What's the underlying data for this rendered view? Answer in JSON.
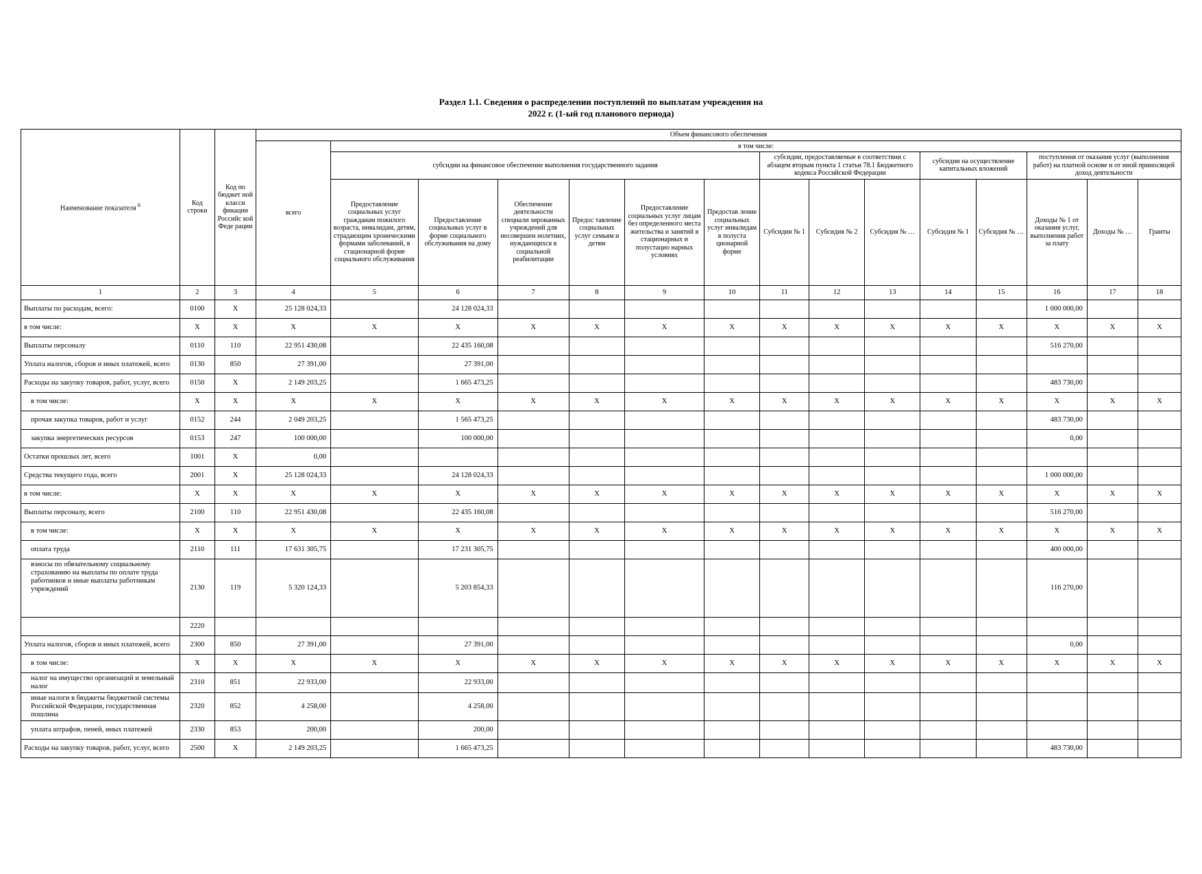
{
  "title": "Раздел 1.1. Сведения о распределении поступлений по выплатам учреждения на",
  "subtitle": "2022 г. (1-ый год планового периода)",
  "head": {
    "c1": "Наименование показателя",
    "c2": "Код строки",
    "c3": "Код по бюджет ной класси фикации Российс кой Феде рации",
    "volume": "Объем финансового обеспечения",
    "vsego": "всего",
    "vtom": "в том числе:",
    "gos_zadanie": "субсидии на финансовое обеспечение выполнения государственного задания",
    "subs_78": "субсидии, предоставляемые в соответствии с абзацем вторым пункта 1 статьи 78.1 Бюджетного кодекса Российской Федерации",
    "kap": "субсидии на осуществление капитальных вложений",
    "postup": "поступления от оказания услуг (выполнения работ) на платной основе и от иной приносящей доход деятельности",
    "h5": "Предоставление социальных услуг гражданам пожилого возраста, инвалидам, детям, страдающим хроническими формами заболеваний, в стационарной форме социального обслуживания",
    "h6": "Предоставление социальных услуг в форме социального обслуживания на дому",
    "h7": "Обеспечение деятельности специали зированных учреждений для несовершен нолетних, нуждающихся в социальной реабилитации",
    "h8": "Предос тавление социальных услуг семьям и детям",
    "h9": "Предоставление социальных услуг лицам без определенного места жительства и занятий в стационарных и полустацио нарных условиях",
    "h10": "Предостав ление социальных услуг инвалидам в полуста ционарной форме",
    "h11": "Субсидия № 1",
    "h12": "Субсидия № 2",
    "h13": "Субсидия № …",
    "h14": "Субсидия № 1",
    "h15": "Субсидия № …",
    "h16": "Доходы № 1 от оказания услуг, выполнения работ за плату",
    "h17": "Доходы № …",
    "h18": "Гранты"
  },
  "numrow": [
    "1",
    "2",
    "3",
    "4",
    "5",
    "6",
    "7",
    "8",
    "9",
    "10",
    "11",
    "12",
    "13",
    "14",
    "15",
    "16",
    "17",
    "18"
  ],
  "rows": [
    {
      "name": "Выплаты по расходам, всего:",
      "c2": "0100",
      "c3": "X",
      "c4": "25 128 024,33",
      "c5": "",
      "c6": "24 128 024,33",
      "c7": "",
      "c8": "",
      "c9": "",
      "c10": "",
      "c11": "",
      "c12": "",
      "c13": "",
      "c14": "",
      "c15": "",
      "c16": "1 000 000,00",
      "c17": "",
      "c18": ""
    },
    {
      "name": "в том числе:",
      "c2": "X",
      "c3": "X",
      "c4": "X",
      "c5": "X",
      "c6": "X",
      "c7": "X",
      "c8": "X",
      "c9": "X",
      "c10": "X",
      "c11": "X",
      "c12": "X",
      "c13": "X",
      "c14": "X",
      "c15": "X",
      "c16": "X",
      "c17": "X",
      "c18": "X",
      "center": true
    },
    {
      "name": "Выплаты персоналу",
      "c2": "0110",
      "c3": "110",
      "c4": "22 951 430,08",
      "c5": "",
      "c6": "22 435 160,08",
      "c7": "",
      "c8": "",
      "c9": "",
      "c10": "",
      "c11": "",
      "c12": "",
      "c13": "",
      "c14": "",
      "c15": "",
      "c16": "516 270,00",
      "c17": "",
      "c18": ""
    },
    {
      "name": "Уплата налогов, сборов и иных платежей, всего",
      "c2": "0130",
      "c3": "850",
      "c4": "27 391,00",
      "c5": "",
      "c6": "27 391,00",
      "c7": "",
      "c8": "",
      "c9": "",
      "c10": "",
      "c11": "",
      "c12": "",
      "c13": "",
      "c14": "",
      "c15": "",
      "c16": "",
      "c17": "",
      "c18": ""
    },
    {
      "name": "Расходы на закупку товаров, работ, услуг, всего",
      "c2": "0150",
      "c3": "X",
      "c4": "2 149 203,25",
      "c5": "",
      "c6": "1 665 473,25",
      "c7": "",
      "c8": "",
      "c9": "",
      "c10": "",
      "c11": "",
      "c12": "",
      "c13": "",
      "c14": "",
      "c15": "",
      "c16": "483 730,00",
      "c17": "",
      "c18": ""
    },
    {
      "name": "в том числе:",
      "indent": 1,
      "c2": "X",
      "c3": "X",
      "c4": "X",
      "c5": "X",
      "c6": "X",
      "c7": "X",
      "c8": "X",
      "c9": "X",
      "c10": "X",
      "c11": "X",
      "c12": "X",
      "c13": "X",
      "c14": "X",
      "c15": "X",
      "c16": "X",
      "c17": "X",
      "c18": "X",
      "center": true
    },
    {
      "name": "прочая закупка товаров, работ и услуг",
      "indent": 1,
      "c2": "0152",
      "c3": "244",
      "c4": "2 049 203,25",
      "c5": "",
      "c6": "1 565 473,25",
      "c7": "",
      "c8": "",
      "c9": "",
      "c10": "",
      "c11": "",
      "c12": "",
      "c13": "",
      "c14": "",
      "c15": "",
      "c16": "483 730,00",
      "c17": "",
      "c18": ""
    },
    {
      "name": "закупка энергетических ресурсов",
      "indent": 1,
      "c2": "0153",
      "c3": "247",
      "c4": "100 000,00",
      "c5": "",
      "c6": "100 000,00",
      "c7": "",
      "c8": "",
      "c9": "",
      "c10": "",
      "c11": "",
      "c12": "",
      "c13": "",
      "c14": "",
      "c15": "",
      "c16": "0,00",
      "c17": "",
      "c18": ""
    },
    {
      "name": "Остатки прошлых лет, всего",
      "c2": "1001",
      "c3": "X",
      "c4": "0,00",
      "c5": "",
      "c6": "",
      "c7": "",
      "c8": "",
      "c9": "",
      "c10": "",
      "c11": "",
      "c12": "",
      "c13": "",
      "c14": "",
      "c15": "",
      "c16": "",
      "c17": "",
      "c18": ""
    },
    {
      "name": "Средства текущего года, всего",
      "c2": "2001",
      "c3": "X",
      "c4": "25 128 024,33",
      "c5": "",
      "c6": "24 128 024,33",
      "c7": "",
      "c8": "",
      "c9": "",
      "c10": "",
      "c11": "",
      "c12": "",
      "c13": "",
      "c14": "",
      "c15": "",
      "c16": "1 000 000,00",
      "c17": "",
      "c18": ""
    },
    {
      "name": "в том числе:",
      "c2": "X",
      "c3": "X",
      "c4": "X",
      "c5": "X",
      "c6": "X",
      "c7": "X",
      "c8": "X",
      "c9": "X",
      "c10": "X",
      "c11": "X",
      "c12": "X",
      "c13": "X",
      "c14": "X",
      "c15": "X",
      "c16": "X",
      "c17": "X",
      "c18": "X",
      "center": true
    },
    {
      "name": "Выплаты персоналу, всего",
      "c2": "2100",
      "c3": "110",
      "c4": "22 951 430,08",
      "c5": "",
      "c6": "22 435 160,08",
      "c7": "",
      "c8": "",
      "c9": "",
      "c10": "",
      "c11": "",
      "c12": "",
      "c13": "",
      "c14": "",
      "c15": "",
      "c16": "516 270,00",
      "c17": "",
      "c18": ""
    },
    {
      "name": "в том числе:",
      "indent": 1,
      "c2": "X",
      "c3": "X",
      "c4": "X",
      "c5": "X",
      "c6": "X",
      "c7": "X",
      "c8": "X",
      "c9": "X",
      "c10": "X",
      "c11": "X",
      "c12": "X",
      "c13": "X",
      "c14": "X",
      "c15": "X",
      "c16": "X",
      "c17": "X",
      "c18": "X",
      "center": true
    },
    {
      "name": "оплата труда",
      "indent": 1,
      "c2": "2110",
      "c3": "111",
      "c4": "17 631 305,75",
      "c5": "",
      "c6": "17 231 305,75",
      "c7": "",
      "c8": "",
      "c9": "",
      "c10": "",
      "c11": "",
      "c12": "",
      "c13": "",
      "c14": "",
      "c15": "",
      "c16": "400 000,00",
      "c17": "",
      "c18": ""
    },
    {
      "name": "взносы по обязательному социальному страхованию на выплаты по оплате труда работников и иные выплаты работникам учреждений",
      "indent": 1,
      "tall": true,
      "c2": "2130",
      "c3": "119",
      "c4": "5 320 124,33",
      "c5": "",
      "c6": "5 203 854,33",
      "c7": "",
      "c8": "",
      "c9": "",
      "c10": "",
      "c11": "",
      "c12": "",
      "c13": "",
      "c14": "",
      "c15": "",
      "c16": "116 270,00",
      "c17": "",
      "c18": ""
    },
    {
      "name": "",
      "c2": "2220",
      "c3": "",
      "c4": "",
      "c5": "",
      "c6": "",
      "c7": "",
      "c8": "",
      "c9": "",
      "c10": "",
      "c11": "",
      "c12": "",
      "c13": "",
      "c14": "",
      "c15": "",
      "c16": "",
      "c17": "",
      "c18": ""
    },
    {
      "name": "Уплата налогов, сборов и иных платежей, всего",
      "c2": "2300",
      "c3": "850",
      "c4": "27 391,00",
      "c5": "",
      "c6": "27 391,00",
      "c7": "",
      "c8": "",
      "c9": "",
      "c10": "",
      "c11": "",
      "c12": "",
      "c13": "",
      "c14": "",
      "c15": "",
      "c16": "0,00",
      "c17": "",
      "c18": ""
    },
    {
      "name": "в том числе:",
      "indent": 1,
      "c2": "X",
      "c3": "X",
      "c4": "X",
      "c5": "X",
      "c6": "X",
      "c7": "X",
      "c8": "X",
      "c9": "X",
      "c10": "X",
      "c11": "X",
      "c12": "X",
      "c13": "X",
      "c14": "X",
      "c15": "X",
      "c16": "X",
      "c17": "X",
      "c18": "X",
      "center": true
    },
    {
      "name": "налог на имущество организаций и земельный налог",
      "indent": 1,
      "c2": "2310",
      "c3": "851",
      "c4": "22 933,00",
      "c5": "",
      "c6": "22 933,00",
      "c7": "",
      "c8": "",
      "c9": "",
      "c10": "",
      "c11": "",
      "c12": "",
      "c13": "",
      "c14": "",
      "c15": "",
      "c16": "",
      "c17": "",
      "c18": ""
    },
    {
      "name": "иные налоги в бюджеты бюджетной системы Российской Федерации, государственная пошлина",
      "indent": 1,
      "c2": "2320",
      "c3": "852",
      "c4": "4 258,00",
      "c5": "",
      "c6": "4 258,00",
      "c7": "",
      "c8": "",
      "c9": "",
      "c10": "",
      "c11": "",
      "c12": "",
      "c13": "",
      "c14": "",
      "c15": "",
      "c16": "",
      "c17": "",
      "c18": ""
    },
    {
      "name": "уплата штрафов, пеней, иных платежей",
      "indent": 1,
      "c2": "2330",
      "c3": "853",
      "c4": "200,00",
      "c5": "",
      "c6": "200,00",
      "c7": "",
      "c8": "",
      "c9": "",
      "c10": "",
      "c11": "",
      "c12": "",
      "c13": "",
      "c14": "",
      "c15": "",
      "c16": "",
      "c17": "",
      "c18": ""
    },
    {
      "name": "Расходы на закупку товаров, работ, услуг, всего",
      "c2": "2500",
      "c3": "X",
      "c4": "2 149 203,25",
      "c5": "",
      "c6": "1 665 473,25",
      "c7": "",
      "c8": "",
      "c9": "",
      "c10": "",
      "c11": "",
      "c12": "",
      "c13": "",
      "c14": "",
      "c15": "",
      "c16": "483 730,00",
      "c17": "",
      "c18": ""
    }
  ],
  "col_widths": {
    "c1": 200,
    "c2": 44,
    "c3": 52,
    "c4": 94,
    "c5": 110,
    "c6": 100,
    "c7": 90,
    "c8": 70,
    "c9": 100,
    "c10": 70,
    "c11": 62,
    "c12": 70,
    "c13": 70,
    "c14": 70,
    "c15": 64,
    "c16": 76,
    "c17": 64,
    "c18": 54
  }
}
